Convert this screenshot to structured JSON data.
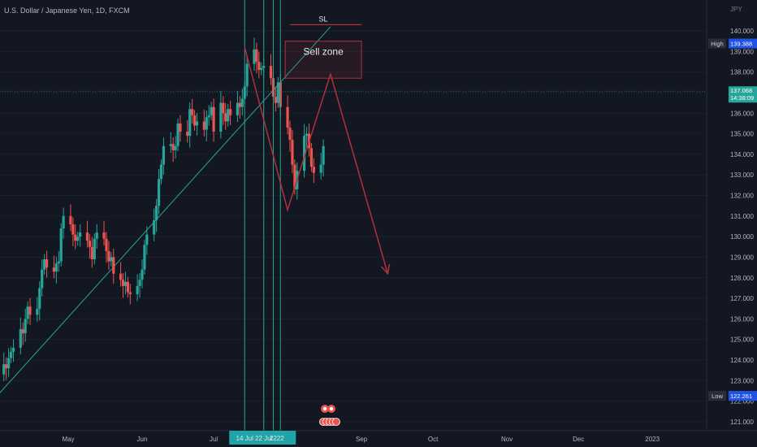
{
  "symbol_title": "U.S. Dollar / Japanese Yen, 1D, FXCM",
  "currency": "JPY",
  "colors": {
    "background": "#131722",
    "up": "#26a69a",
    "down": "#ef5350",
    "trendline": "#26a69a",
    "drawing": "#b2303a",
    "axis_text": "#b2b5be",
    "label_bg": "#1e53e5",
    "current_price_bg": "#26a69a",
    "marker_bg": "#1fa5a8"
  },
  "chart_data": {
    "type": "candlestick",
    "ylim": [
      120.5,
      140.9
    ],
    "y_ticks": [
      "121.000",
      "122.000",
      "123.000",
      "124.000",
      "125.000",
      "126.000",
      "127.000",
      "128.000",
      "129.000",
      "130.000",
      "131.000",
      "132.000",
      "133.000",
      "134.000",
      "135.000",
      "136.000",
      "137.000",
      "138.000",
      "139.000",
      "140.000"
    ],
    "x_ticks": [
      "May",
      "Jun",
      "Jul",
      "Sep",
      "Oct",
      "Nov",
      "Dec",
      "2023"
    ],
    "candles_span": {
      "start": "2022-03-31",
      "end": "2022-08-16"
    },
    "closes": [
      122.4,
      123.3,
      123.8,
      123.6,
      124.1,
      124.4,
      124.6,
      125.5,
      125.3,
      126.0,
      126.6,
      126.2,
      126.5,
      127.5,
      128.4,
      128.9,
      128.5,
      128.3,
      128.7,
      128.8,
      130.4,
      131.0,
      130.6,
      130.1,
      129.8,
      130.0,
      130.2,
      129.8,
      129.5,
      128.9,
      129.9,
      130.2,
      129.9,
      129.3,
      128.8,
      129.0,
      128.2,
      127.9,
      127.6,
      127.8,
      127.3,
      127.2,
      127.6,
      127.9,
      128.4,
      129.6,
      130.1,
      130.8,
      131.5,
      132.8,
      133.5,
      134.4,
      134.5,
      134.2,
      134.4,
      135.5,
      135.1,
      134.9,
      136.2,
      135.9,
      135.4,
      135.6,
      135.2,
      135.8,
      135.9,
      136.3,
      135.1,
      136.5,
      136.0,
      135.6,
      136.2,
      135.9,
      136.5,
      136.3,
      136.7,
      137.3,
      138.4,
      139.1,
      138.5,
      138.1,
      138.2,
      138.3,
      137.7,
      136.8,
      136.5,
      137.5,
      136.3,
      135.3,
      134.7,
      133.5,
      132.3,
      133.2,
      134.9,
      135.0,
      134.3,
      133.4,
      133.1,
      133.5,
      134.4,
      135.4,
      135.9,
      136.3,
      136.9,
      137.4
    ],
    "last_price": "137.068",
    "countdown": "14:38:09",
    "high_value": "139.388",
    "low_value": "122.261",
    "high_label": "High",
    "low_label": "Low",
    "vertical_line_dates": [
      "14 Jul",
      "22 Jul",
      "22",
      "22"
    ],
    "annotations": {
      "sell_zone_text": "Sell zone",
      "sell_zone_price": [
        137.7,
        139.5
      ],
      "sl_text": "SL",
      "sl_price": 140.3,
      "trendline_start": {
        "date": "2022-03-20",
        "price": 120.7
      },
      "trendline_end": {
        "date": "2022-08-19",
        "price": 140.2
      },
      "zigzag": [
        {
          "date": "2022-07-14",
          "price": 139.2
        },
        {
          "date": "2022-08-01",
          "price": 131.3
        },
        {
          "date": "2022-08-19",
          "price": 137.9
        },
        {
          "date": "2022-09-12",
          "price": 128.2
        }
      ],
      "event_badge_date": "2022-08-18"
    }
  }
}
